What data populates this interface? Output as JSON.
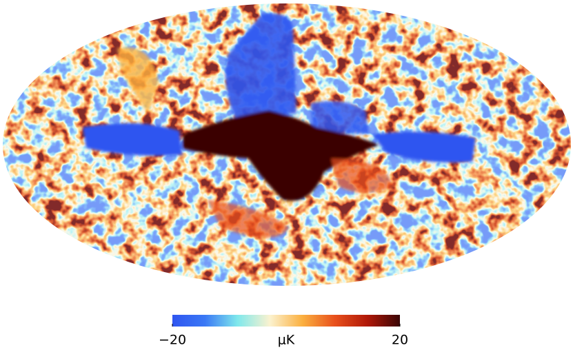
{
  "chart_data": {
    "type": "skymap",
    "projection": "mollweide",
    "colorbar_label": "μK",
    "clim": [
      -20,
      20
    ],
    "cticks": [
      {
        "value": -20,
        "label": "−20"
      },
      {
        "value": 20,
        "label": "20"
      }
    ],
    "colormap": [
      "#2f55f0",
      "#3a78f5",
      "#7fe8ec",
      "#fbf2cf",
      "#fbb040",
      "#e8501c",
      "#b01808",
      "#3a0606"
    ]
  }
}
